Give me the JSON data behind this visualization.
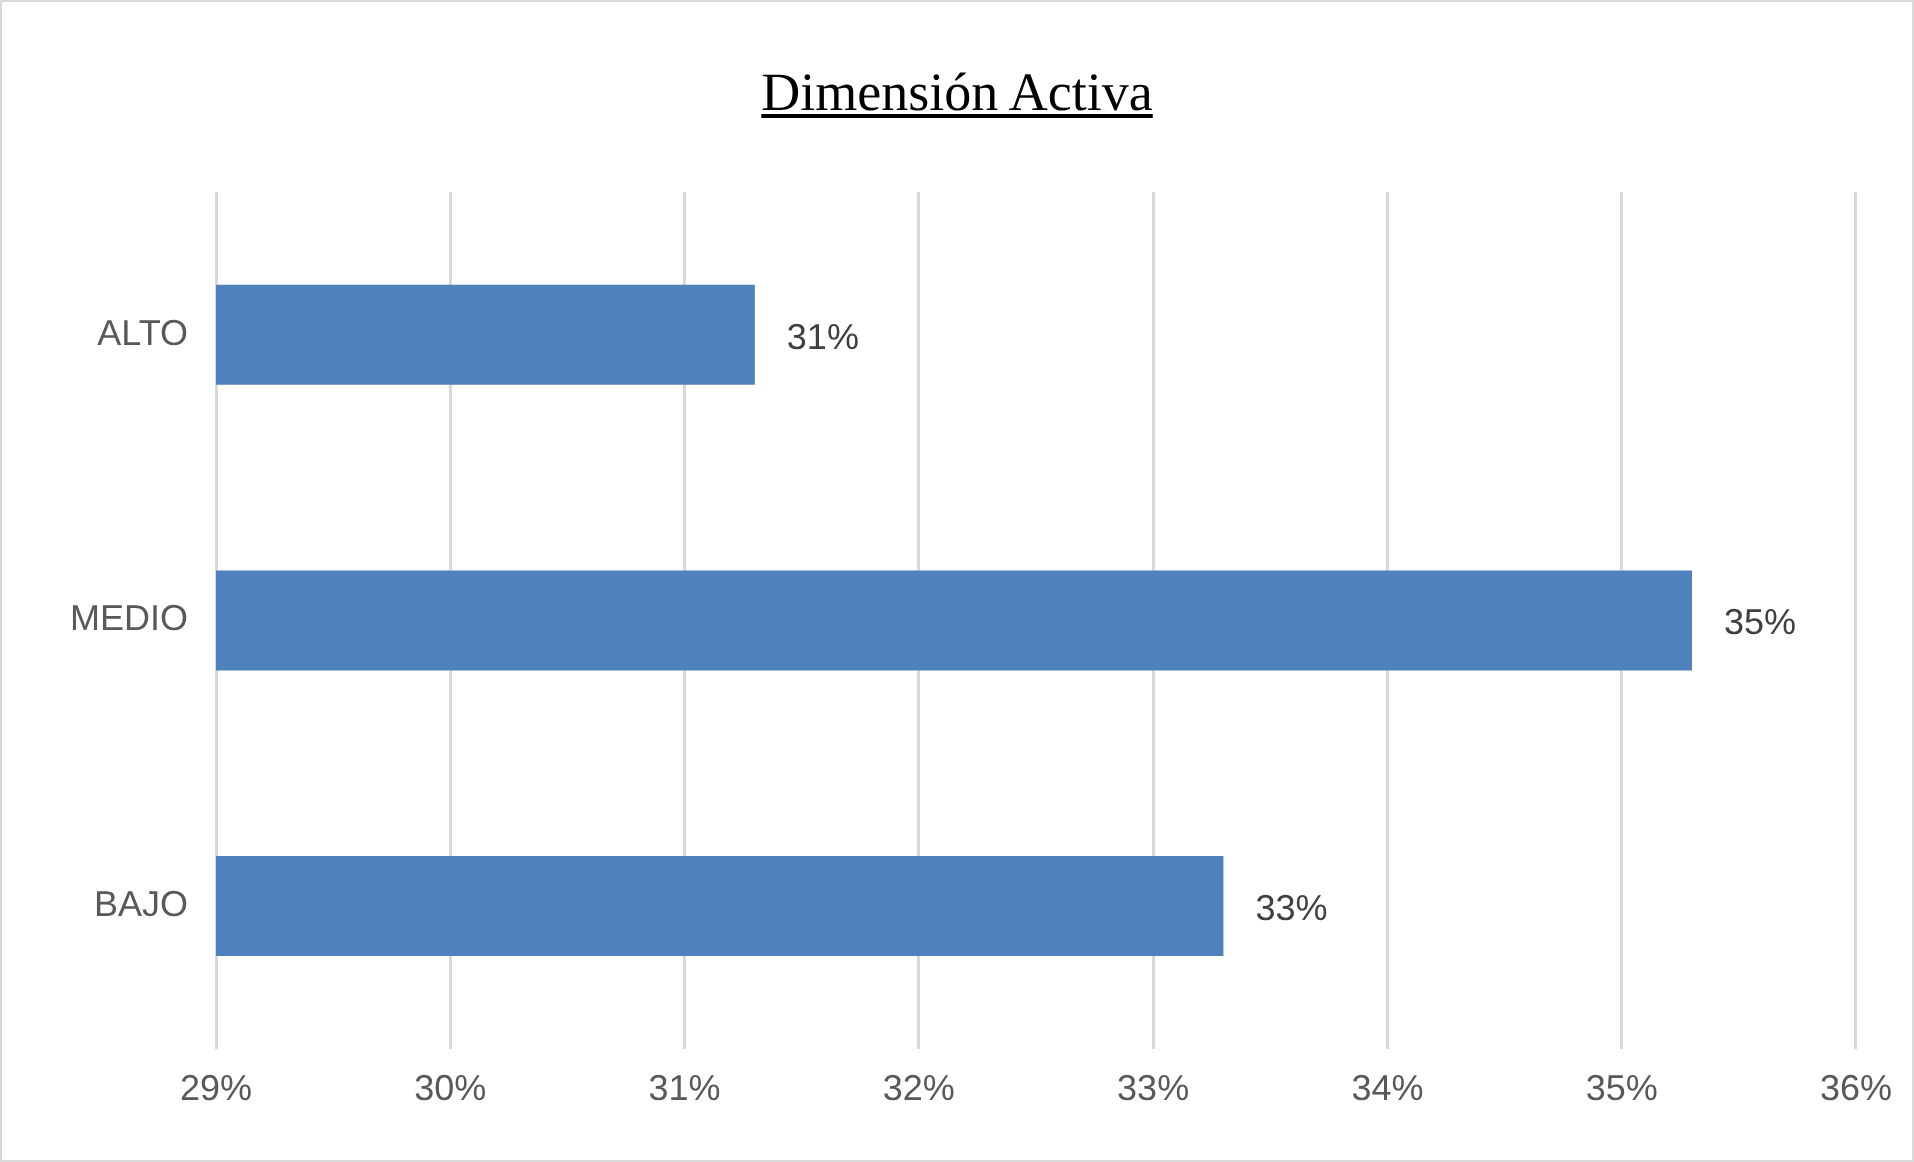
{
  "chart_data": {
    "type": "bar",
    "orientation": "horizontal",
    "title": "Dimensión Activa",
    "categories": [
      "ALTO",
      "MEDIO",
      "BAJO"
    ],
    "values": [
      31.3,
      35.3,
      33.3
    ],
    "value_labels": [
      "31%",
      "35%",
      "33%"
    ],
    "color": "#4f81bd",
    "xlim": [
      29,
      36
    ],
    "xticks": [
      {
        "value": 29,
        "label": "29%"
      },
      {
        "value": 30,
        "label": "30%"
      },
      {
        "value": 31,
        "label": "31%"
      },
      {
        "value": 32,
        "label": "32%"
      },
      {
        "value": 33,
        "label": "33%"
      },
      {
        "value": 34,
        "label": "34%"
      },
      {
        "value": 35,
        "label": "35%"
      },
      {
        "value": 36,
        "label": "36%"
      }
    ],
    "grid": "x",
    "legend": false
  }
}
